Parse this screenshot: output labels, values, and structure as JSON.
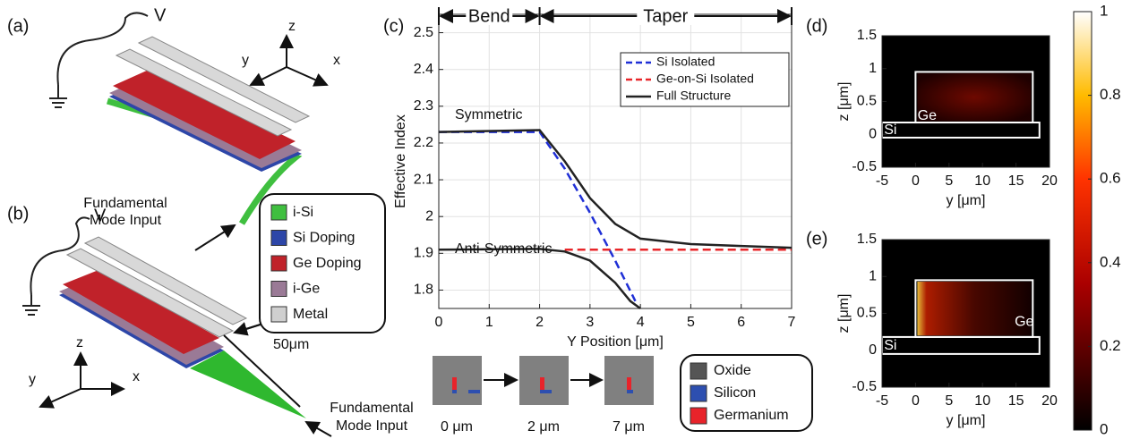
{
  "figure": {
    "panel_labels": [
      "(a)",
      "(b)",
      "(c)",
      "(d)",
      "(e)"
    ]
  },
  "schematic": {
    "voltage": [
      "V",
      "V"
    ],
    "axes_a": [
      "y",
      "z",
      "x"
    ],
    "axes_b": [
      "z",
      "y",
      "x"
    ],
    "mode_input_a": [
      "Fundamental",
      "Mode Input"
    ],
    "mode_input_b": [
      "Fundamental",
      "Mode Input"
    ],
    "length": "50μm",
    "legend": [
      {
        "name": "i-Si",
        "color": "#3fbf3f"
      },
      {
        "name": "Si Doping",
        "color": "#2d46a8"
      },
      {
        "name": "Ge Doping",
        "color": "#c0222a"
      },
      {
        "name": "i-Ge",
        "color": "#9a7a96"
      },
      {
        "name": "Metal",
        "color": "#cfcfcf"
      }
    ]
  },
  "cross_sections": {
    "positions": [
      "0 μm",
      "2 μm",
      "7 μm"
    ],
    "legend": [
      {
        "name": "Oxide",
        "color": "#555555"
      },
      {
        "name": "Silicon",
        "color": "#2d4fb0"
      },
      {
        "name": "Germanium",
        "color": "#e8232a"
      }
    ]
  },
  "chart_data": [
    {
      "type": "line",
      "xlabel": "Y Position [μm]",
      "ylabel": "Effective Index",
      "xlim": [
        0,
        7
      ],
      "ylim": [
        1.75,
        2.55
      ],
      "xticks": [
        0,
        1,
        2,
        3,
        4,
        5,
        6,
        7
      ],
      "yticks": [
        1.8,
        1.9,
        2,
        2.1,
        2.2,
        2.3,
        2.4,
        2.5
      ],
      "grid": true,
      "sections": [
        "Bend",
        "Taper"
      ],
      "annotations": [
        "Symmetric",
        "Anti-Symmetric"
      ],
      "legend": "upper right",
      "series": [
        {
          "name": "Si Isolated",
          "color": "#1f2fd6",
          "linestyle": "dashed",
          "x": [
            0,
            2,
            2.5,
            3,
            3.5,
            3.9
          ],
          "values": [
            2.23,
            2.23,
            2.13,
            2.01,
            1.88,
            1.77
          ]
        },
        {
          "name": "Ge-on-Si Isolated",
          "color": "#e8262a",
          "linestyle": "dashed",
          "x": [
            2.5,
            3,
            4,
            5,
            6,
            7
          ],
          "values": [
            1.91,
            1.91,
            1.91,
            1.91,
            1.91,
            1.91
          ]
        },
        {
          "name": "Full Structure",
          "color": "#222222",
          "linestyle": "solid",
          "x": [
            0,
            2,
            2.5,
            3,
            3.5,
            4,
            5,
            6,
            7,
            null,
            0,
            2,
            2.5,
            3,
            3.5,
            3.8,
            4
          ],
          "values": [
            2.23,
            2.235,
            2.15,
            2.05,
            1.98,
            1.94,
            1.925,
            1.92,
            1.915,
            null,
            1.91,
            1.912,
            1.905,
            1.88,
            1.82,
            1.77,
            1.75
          ]
        }
      ]
    },
    {
      "type": "heatmap",
      "xlabel": "y [μm]",
      "ylabel": "z [μm]",
      "xlim": [
        -5,
        20
      ],
      "ylim": [
        -0.5,
        1.5
      ],
      "xticks": [
        -5,
        0,
        5,
        10,
        15,
        20
      ],
      "yticks": [
        -0.5,
        0,
        0.5,
        1,
        1.5
      ],
      "annotations": [
        "Ge",
        "Si"
      ],
      "colorbar": {
        "lim": [
          0,
          1
        ],
        "ticks": [
          0,
          0.2,
          0.4,
          0.6,
          0.8,
          1
        ]
      }
    },
    {
      "type": "heatmap",
      "xlabel": "y [μm]",
      "ylabel": "z [μm]",
      "xlim": [
        -5,
        20
      ],
      "ylim": [
        -0.5,
        1.5
      ],
      "xticks": [
        -5,
        0,
        5,
        10,
        15,
        20
      ],
      "yticks": [
        -0.5,
        0,
        0.5,
        1,
        1.5
      ],
      "annotations": [
        "Ge",
        "Si"
      ]
    }
  ]
}
